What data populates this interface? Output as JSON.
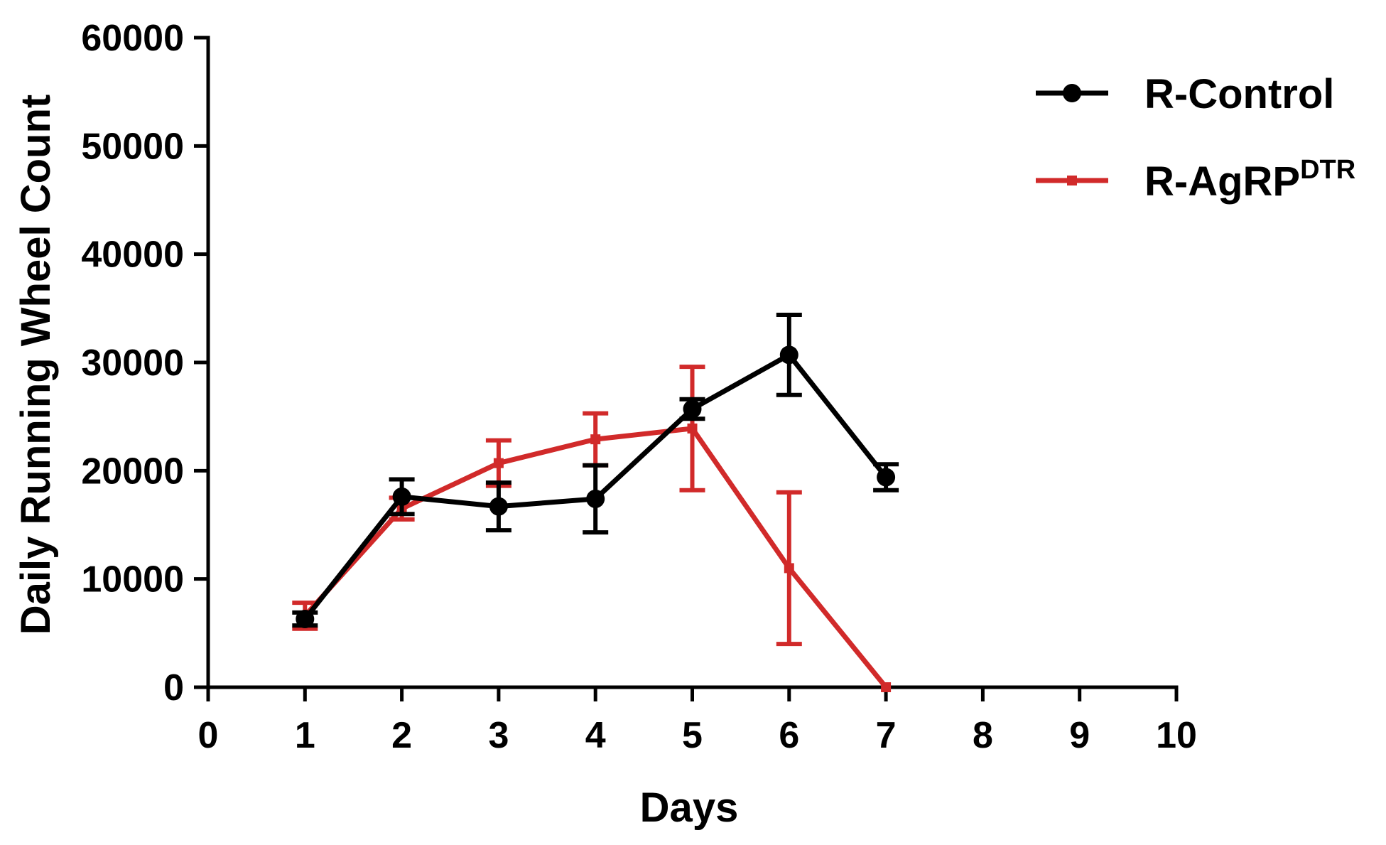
{
  "chart_data": {
    "type": "line",
    "title": "",
    "xlabel": "Days",
    "ylabel": "Daily  Running Wheel Count",
    "xlim": [
      0,
      10
    ],
    "ylim": [
      0,
      60000
    ],
    "x_ticks": [
      "0",
      "1",
      "2",
      "3",
      "4",
      "5",
      "6",
      "7",
      "8",
      "9",
      "10"
    ],
    "y_ticks": [
      "0",
      "10000",
      "20000",
      "30000",
      "40000",
      "50000",
      "60000"
    ],
    "grid": false,
    "legend_position": "top-right",
    "series": [
      {
        "name": "R-Control",
        "color": "#000000",
        "marker": "circle",
        "x": [
          1,
          2,
          3,
          4,
          5,
          6,
          7
        ],
        "y": [
          6300,
          17600,
          16700,
          17400,
          25700,
          30700,
          19400
        ],
        "error": [
          600,
          1600,
          2200,
          3100,
          900,
          3700,
          1200
        ]
      },
      {
        "name": "R-AgRP",
        "name_superscript": "DTR",
        "color": "#d12a2a",
        "marker": "square",
        "x": [
          1,
          2,
          3,
          4,
          5,
          6,
          7
        ],
        "y": [
          6600,
          16500,
          20700,
          22900,
          23900,
          11000,
          0
        ],
        "error": [
          1200,
          1000,
          2100,
          2400,
          5700,
          7000,
          0
        ]
      }
    ]
  }
}
